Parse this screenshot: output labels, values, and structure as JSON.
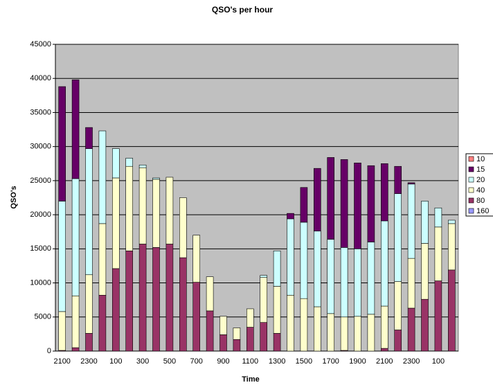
{
  "chart_data": {
    "type": "stacked_bar",
    "title": "QSO's per hour",
    "x_label": "Time",
    "y_label": "QSO's",
    "categories": [
      "2100",
      null,
      "2300",
      null,
      "100",
      null,
      "300",
      null,
      "500",
      null,
      "700",
      null,
      "900",
      null,
      "1100",
      null,
      "1300",
      null,
      "1500",
      null,
      "1700",
      null,
      "1900",
      null,
      "2100",
      null,
      "2300",
      null,
      "100",
      null
    ],
    "series": [
      {
        "name": "10",
        "color": "#ff8080",
        "values": [
          0,
          0,
          0,
          0,
          0,
          0,
          0,
          0,
          0,
          0,
          0,
          0,
          0,
          0,
          0,
          0,
          0,
          0,
          0,
          0,
          0,
          0,
          0,
          0,
          0,
          0,
          0,
          0,
          0,
          0
        ]
      },
      {
        "name": "15",
        "color": "#660066",
        "values": [
          16800,
          14500,
          3100,
          0,
          0,
          0,
          0,
          0,
          0,
          0,
          0,
          0,
          0,
          0,
          0,
          0,
          0,
          800,
          5100,
          9200,
          12000,
          12900,
          12600,
          11200,
          8400,
          4000,
          200,
          0,
          0,
          0
        ]
      },
      {
        "name": "20",
        "color": "#ccffff",
        "values": [
          16200,
          17200,
          18500,
          13600,
          4300,
          1200,
          400,
          200,
          0,
          0,
          0,
          0,
          0,
          0,
          0,
          300,
          5200,
          11200,
          11200,
          11100,
          10900,
          10200,
          9900,
          10600,
          12500,
          12900,
          10900,
          6200,
          2800,
          500
        ]
      },
      {
        "name": "40",
        "color": "#ffffcc",
        "values": [
          5700,
          7600,
          8600,
          10500,
          13300,
          12400,
          11200,
          10000,
          9800,
          8800,
          6900,
          5000,
          2700,
          1700,
          2700,
          6600,
          6900,
          8200,
          7700,
          6500,
          5500,
          4900,
          5100,
          5400,
          6200,
          7100,
          7300,
          8200,
          7900,
          6800
        ]
      },
      {
        "name": "80",
        "color": "#993366",
        "values": [
          100,
          500,
          2600,
          8200,
          12100,
          14700,
          15700,
          15200,
          15700,
          13700,
          10100,
          5900,
          2400,
          1700,
          3500,
          4200,
          2600,
          0,
          0,
          0,
          0,
          100,
          0,
          0,
          400,
          3100,
          6300,
          7600,
          10300,
          11900
        ]
      },
      {
        "name": "160",
        "color": "#9999ff",
        "values": [
          0,
          0,
          0,
          0,
          0,
          0,
          0,
          0,
          0,
          0,
          0,
          0,
          0,
          0,
          0,
          0,
          0,
          0,
          0,
          0,
          0,
          0,
          0,
          0,
          0,
          0,
          0,
          0,
          0,
          0
        ]
      }
    ],
    "ylim": [
      0,
      45000
    ],
    "yticks": [
      0,
      5000,
      10000,
      15000,
      20000,
      25000,
      30000,
      35000,
      40000,
      45000
    ],
    "grid": true,
    "legend": "right",
    "plot_background": "#c0c0c0"
  }
}
